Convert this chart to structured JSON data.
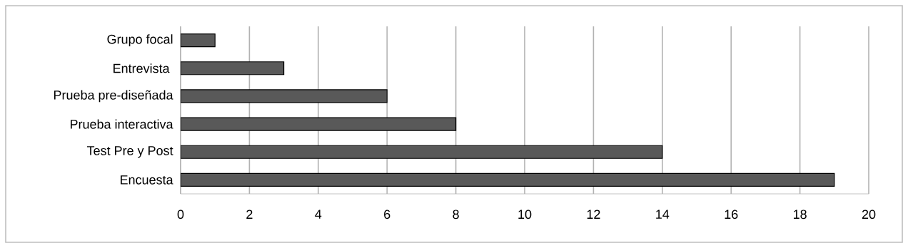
{
  "chart_data": {
    "type": "bar",
    "orientation": "horizontal",
    "categories": [
      "Grupo focal",
      "Entrevista ",
      "Prueba pre-diseñada",
      "Prueba interactiva",
      "Test Pre y Post",
      "Encuesta"
    ],
    "values": [
      1,
      3,
      6,
      8,
      14,
      19
    ],
    "color": "#595959",
    "xlim": [
      0,
      20
    ],
    "xticks": [
      0,
      2,
      4,
      6,
      8,
      10,
      12,
      14,
      16,
      18,
      20
    ],
    "grid": "x"
  }
}
